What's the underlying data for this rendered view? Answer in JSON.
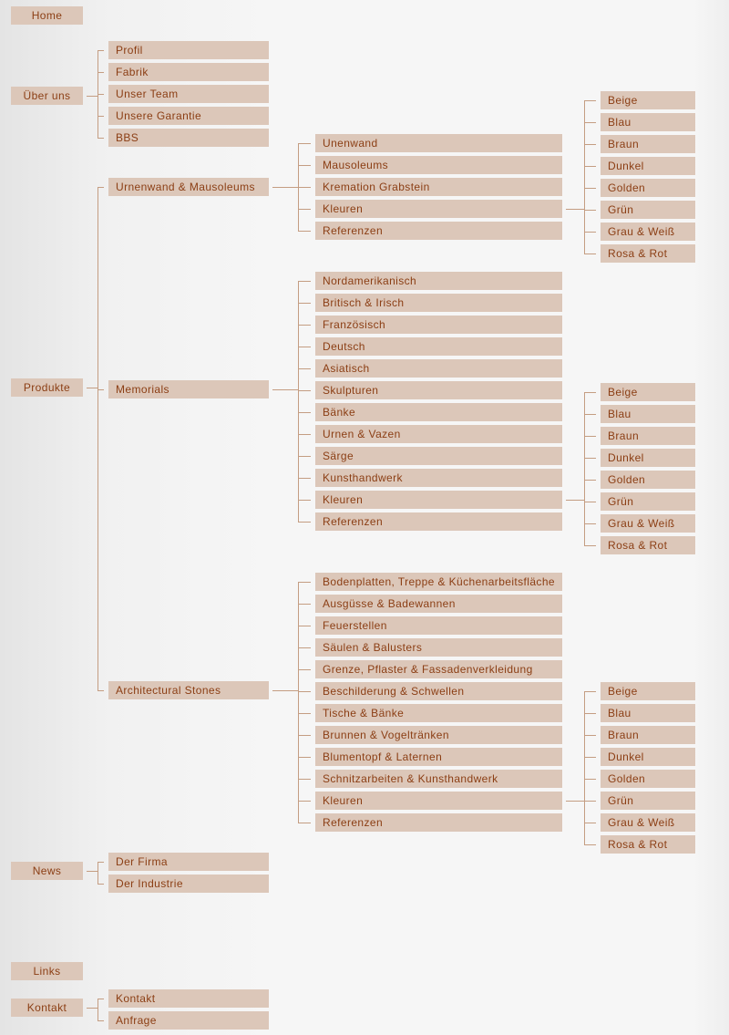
{
  "colors": {
    "box": "#dcc7b9",
    "text": "#8b3e14",
    "connector": "#c49d82"
  },
  "nav": {
    "items": [
      {
        "label": "Home"
      },
      {
        "label": "Über uns",
        "children": [
          {
            "label": "Profil"
          },
          {
            "label": "Fabrik"
          },
          {
            "label": "Unser Team"
          },
          {
            "label": "Unsere Garantie"
          },
          {
            "label": "BBS"
          }
        ]
      },
      {
        "label": "Produkte",
        "children": [
          {
            "label": "Urnenwand & Mausoleums",
            "children": [
              {
                "label": "Unenwand"
              },
              {
                "label": "Mausoleums"
              },
              {
                "label": "Kremation Grabstein"
              },
              {
                "label": "Kleuren",
                "children": [
                  {
                    "label": "Beige"
                  },
                  {
                    "label": "Blau"
                  },
                  {
                    "label": "Braun"
                  },
                  {
                    "label": "Dunkel"
                  },
                  {
                    "label": "Golden"
                  },
                  {
                    "label": "Grün"
                  },
                  {
                    "label": "Grau & Weiß"
                  },
                  {
                    "label": "Rosa & Rot"
                  }
                ]
              },
              {
                "label": "Referenzen"
              }
            ]
          },
          {
            "label": "Memorials",
            "children": [
              {
                "label": "Nordamerikanisch"
              },
              {
                "label": "Britisch & Irisch"
              },
              {
                "label": "Französisch"
              },
              {
                "label": "Deutsch"
              },
              {
                "label": "Asiatisch"
              },
              {
                "label": "Skulpturen"
              },
              {
                "label": "Bänke"
              },
              {
                "label": "Urnen & Vazen"
              },
              {
                "label": "Särge"
              },
              {
                "label": "Kunsthandwerk"
              },
              {
                "label": "Kleuren",
                "children": [
                  {
                    "label": "Beige"
                  },
                  {
                    "label": "Blau"
                  },
                  {
                    "label": "Braun"
                  },
                  {
                    "label": "Dunkel"
                  },
                  {
                    "label": "Golden"
                  },
                  {
                    "label": "Grün"
                  },
                  {
                    "label": "Grau & Weiß"
                  },
                  {
                    "label": "Rosa & Rot"
                  }
                ]
              },
              {
                "label": "Referenzen"
              }
            ]
          },
          {
            "label": "Architectural Stones",
            "children": [
              {
                "label": "Bodenplatten, Treppe & Küchenarbeitsfläche"
              },
              {
                "label": "Ausgüsse & Badewannen"
              },
              {
                "label": "Feuerstellen"
              },
              {
                "label": "Säulen & Balusters"
              },
              {
                "label": "Grenze, Pflaster & Fassadenverkleidung"
              },
              {
                "label": "Beschilderung & Schwellen"
              },
              {
                "label": "Tische & Bänke"
              },
              {
                "label": "Brunnen & Vogeltränken"
              },
              {
                "label": "Blumentopf & Laternen"
              },
              {
                "label": "Schnitzarbeiten & Kunsthandwerk"
              },
              {
                "label": "Kleuren",
                "children": [
                  {
                    "label": "Beige"
                  },
                  {
                    "label": "Blau"
                  },
                  {
                    "label": "Braun"
                  },
                  {
                    "label": "Dunkel"
                  },
                  {
                    "label": "Golden"
                  },
                  {
                    "label": "Grün"
                  },
                  {
                    "label": "Grau & Weiß"
                  },
                  {
                    "label": "Rosa & Rot"
                  }
                ]
              },
              {
                "label": "Referenzen"
              }
            ]
          }
        ]
      },
      {
        "label": "News",
        "children": [
          {
            "label": "Der Firma"
          },
          {
            "label": "Der Industrie"
          }
        ]
      },
      {
        "label": "Links"
      },
      {
        "label": "Kontakt",
        "children": [
          {
            "label": "Kontakt"
          },
          {
            "label": "Anfrage"
          }
        ]
      }
    ]
  }
}
